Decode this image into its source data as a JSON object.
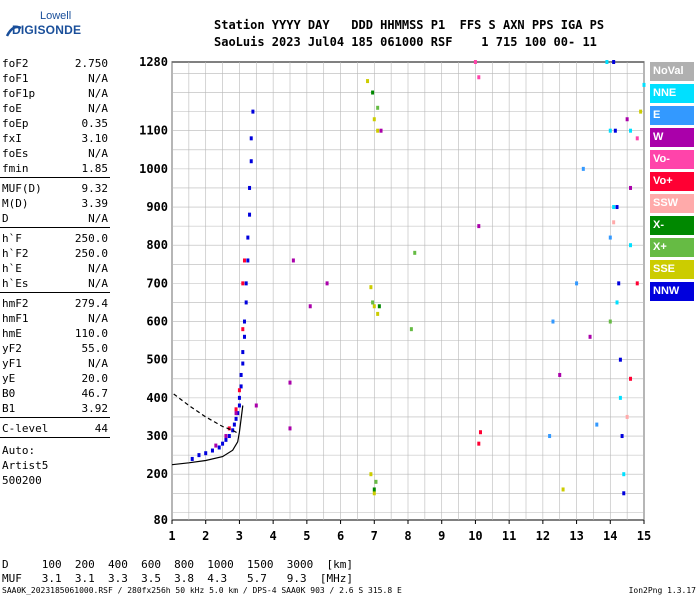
{
  "logo": {
    "line1": "Lowell",
    "line2": "DIGISONDE"
  },
  "header": {
    "line1": "Station YYYY DAY   DDD HHMMSS P1  FFS S AXN PPS IGA PS",
    "line2": "SaoLuis 2023 Jul04 185 061000 RSF    1 715 100 00- 11"
  },
  "params": {
    "group1": [
      {
        "label": "foF2",
        "value": "2.750"
      },
      {
        "label": "foF1",
        "value": "N/A"
      },
      {
        "label": "foF1p",
        "value": "N/A"
      },
      {
        "label": "foE",
        "value": "N/A"
      },
      {
        "label": "foEp",
        "value": "0.35"
      },
      {
        "label": "fxI",
        "value": "3.10"
      },
      {
        "label": "foEs",
        "value": "N/A"
      },
      {
        "label": "fmin",
        "value": "1.85"
      }
    ],
    "group2": [
      {
        "label": "MUF(D)",
        "value": "9.32"
      },
      {
        "label": "M(D)",
        "value": "3.39"
      },
      {
        "label": "D",
        "value": "N/A"
      }
    ],
    "group3": [
      {
        "label": "h`F",
        "value": "250.0"
      },
      {
        "label": "h`F2",
        "value": "250.0"
      },
      {
        "label": "h`E",
        "value": "N/A"
      },
      {
        "label": "h`Es",
        "value": "N/A"
      }
    ],
    "group4": [
      {
        "label": "hmF2",
        "value": "279.4"
      },
      {
        "label": "hmF1",
        "value": "N/A"
      },
      {
        "label": "hmE",
        "value": "110.0"
      },
      {
        "label": "yF2",
        "value": "55.0"
      },
      {
        "label": "yF1",
        "value": "N/A"
      },
      {
        "label": "yE",
        "value": "20.0"
      },
      {
        "label": "B0",
        "value": "46.7"
      },
      {
        "label": "B1",
        "value": "3.92"
      }
    ],
    "clevel": {
      "label": "C-level",
      "value": "44"
    },
    "auto": [
      "Auto:",
      "Artist5",
      "500200"
    ]
  },
  "legend": [
    {
      "label": "NoVal",
      "color": "#b0b0b0"
    },
    {
      "label": "NNE",
      "color": "#00e0ff"
    },
    {
      "label": "E",
      "color": "#3399ff"
    },
    {
      "label": "W",
      "color": "#aa00aa"
    },
    {
      "label": "Vo-",
      "color": "#ff44aa"
    },
    {
      "label": "Vo+",
      "color": "#ff0033"
    },
    {
      "label": "SSW",
      "color": "#ffaaaa"
    },
    {
      "label": "X-",
      "color": "#008800"
    },
    {
      "label": "X+",
      "color": "#66bb44"
    },
    {
      "label": "SSE",
      "color": "#cccc00"
    },
    {
      "label": "NNW",
      "color": "#0000dd"
    }
  ],
  "bottom": {
    "line1": "D     100  200  400  600  800  1000  1500  3000  [km]",
    "line2": "MUF   3.1  3.1  3.3  3.5  3.8  4.3   5.7   9.3  [MHz]"
  },
  "footer": {
    "left": "SAA0K_2023185061000.RSF / 280fx256h 50 kHz 5.0 km / DPS-4 SAA0K 903 / 2.6 S 315.8 E",
    "right": "Ion2Png 1.3.17"
  },
  "chart_data": {
    "type": "scatter",
    "xlim": [
      1,
      15
    ],
    "ylim": [
      80,
      1280
    ],
    "x_ticks": [
      1,
      2,
      3,
      4,
      5,
      6,
      7,
      8,
      9,
      10,
      11,
      12,
      13,
      14,
      15
    ],
    "y_ticks": [
      80,
      200,
      300,
      400,
      500,
      600,
      700,
      800,
      900,
      1000,
      1100,
      1280
    ],
    "y_tick_labels": [
      "80",
      "200",
      "300",
      "400",
      "500",
      "600",
      "700",
      "800",
      "900",
      "1000",
      "1100",
      "1280"
    ],
    "grid": true,
    "series": [
      {
        "color": "#0000dd",
        "points": [
          [
            1.6,
            240
          ],
          [
            1.8,
            250
          ],
          [
            2.0,
            255
          ],
          [
            2.2,
            262
          ],
          [
            2.4,
            270
          ],
          [
            2.5,
            280
          ],
          [
            2.6,
            290
          ],
          [
            2.7,
            300
          ],
          [
            2.8,
            315
          ],
          [
            2.85,
            330
          ],
          [
            2.9,
            345
          ],
          [
            2.95,
            360
          ],
          [
            3.0,
            380
          ],
          [
            3.0,
            400
          ],
          [
            3.05,
            430
          ],
          [
            3.05,
            460
          ],
          [
            3.1,
            490
          ],
          [
            3.1,
            520
          ],
          [
            3.15,
            560
          ],
          [
            3.15,
            600
          ],
          [
            3.2,
            650
          ],
          [
            3.2,
            700
          ],
          [
            3.25,
            760
          ],
          [
            3.25,
            820
          ],
          [
            3.3,
            880
          ],
          [
            3.3,
            950
          ],
          [
            3.35,
            1020
          ],
          [
            3.35,
            1080
          ],
          [
            3.4,
            1150
          ],
          [
            14.1,
            1280
          ],
          [
            14.15,
            1100
          ],
          [
            14.2,
            900
          ],
          [
            14.25,
            700
          ],
          [
            14.3,
            500
          ],
          [
            14.35,
            300
          ],
          [
            14.4,
            150
          ]
        ]
      },
      {
        "color": "#ff0033",
        "points": [
          [
            2.7,
            320
          ],
          [
            2.9,
            370
          ],
          [
            3.0,
            420
          ],
          [
            3.1,
            580
          ],
          [
            3.1,
            700
          ],
          [
            3.15,
            760
          ],
          [
            10.1,
            280
          ],
          [
            10.15,
            310
          ],
          [
            14.6,
            450
          ],
          [
            14.8,
            700
          ]
        ]
      },
      {
        "color": "#aa00aa",
        "points": [
          [
            2.3,
            275
          ],
          [
            2.6,
            300
          ],
          [
            2.9,
            360
          ],
          [
            3.5,
            380
          ],
          [
            4.5,
            320
          ],
          [
            4.5,
            440
          ],
          [
            4.6,
            760
          ],
          [
            5.1,
            640
          ],
          [
            5.6,
            700
          ],
          [
            7.2,
            1100
          ],
          [
            10.1,
            850
          ],
          [
            12.5,
            460
          ],
          [
            13.4,
            560
          ],
          [
            14.5,
            1130
          ],
          [
            14.6,
            950
          ]
        ]
      },
      {
        "color": "#00e0ff",
        "points": [
          [
            13.9,
            1280
          ],
          [
            14.0,
            1100
          ],
          [
            14.1,
            900
          ],
          [
            14.2,
            650
          ],
          [
            14.3,
            400
          ],
          [
            14.4,
            200
          ],
          [
            14.6,
            1100
          ],
          [
            14.6,
            800
          ],
          [
            15.0,
            1220
          ]
        ]
      },
      {
        "color": "#3399ff",
        "points": [
          [
            12.2,
            300
          ],
          [
            12.3,
            600
          ],
          [
            13.0,
            700
          ],
          [
            13.2,
            1000
          ],
          [
            13.6,
            330
          ],
          [
            14.0,
            820
          ]
        ]
      },
      {
        "color": "#cccc00",
        "points": [
          [
            6.8,
            1230
          ],
          [
            7.0,
            1130
          ],
          [
            7.1,
            1100
          ],
          [
            6.9,
            690
          ],
          [
            7.0,
            640
          ],
          [
            7.1,
            620
          ],
          [
            6.9,
            200
          ],
          [
            7.0,
            150
          ],
          [
            12.6,
            160
          ],
          [
            14.9,
            1150
          ]
        ]
      },
      {
        "color": "#66bb44",
        "points": [
          [
            7.1,
            1160
          ],
          [
            6.95,
            650
          ],
          [
            7.05,
            180
          ],
          [
            8.1,
            580
          ],
          [
            8.2,
            780
          ],
          [
            14.0,
            600
          ]
        ]
      },
      {
        "color": "#008800",
        "points": [
          [
            6.95,
            1200
          ],
          [
            7.15,
            640
          ],
          [
            7.0,
            160
          ]
        ]
      },
      {
        "color": "#ff44aa",
        "points": [
          [
            10.0,
            1280
          ],
          [
            10.1,
            1240
          ],
          [
            14.8,
            1080
          ]
        ]
      },
      {
        "color": "#ffaaaa",
        "points": [
          [
            14.1,
            860
          ],
          [
            14.5,
            350
          ]
        ]
      }
    ],
    "curves": [
      {
        "style": "solid",
        "points": [
          [
            1.0,
            225
          ],
          [
            1.5,
            230
          ],
          [
            2.0,
            236
          ],
          [
            2.5,
            246
          ],
          [
            2.8,
            263
          ],
          [
            2.95,
            285
          ],
          [
            3.0,
            310
          ],
          [
            3.05,
            345
          ],
          [
            3.1,
            380
          ]
        ]
      },
      {
        "style": "dashed",
        "points": [
          [
            1.05,
            410
          ],
          [
            1.5,
            380
          ],
          [
            2.0,
            350
          ],
          [
            2.5,
            325
          ],
          [
            2.8,
            315
          ],
          [
            3.0,
            305
          ]
        ]
      }
    ]
  }
}
